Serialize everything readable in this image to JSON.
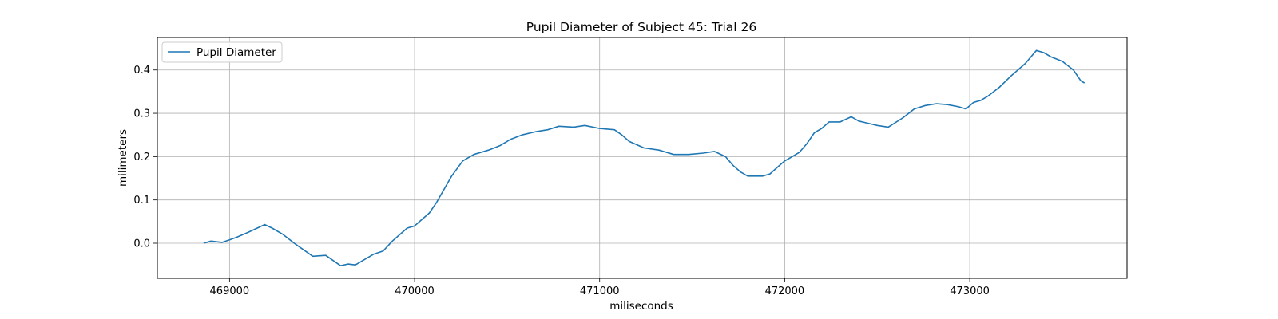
{
  "chart_data": {
    "type": "line",
    "title": "Pupil Diameter of Subject 45: Trial 26",
    "xlabel": "miliseconds",
    "ylabel": "milimeters",
    "xlim": [
      468610,
      473850
    ],
    "ylim": [
      -0.081,
      0.475
    ],
    "xticks": [
      469000,
      470000,
      471000,
      472000,
      473000
    ],
    "xtick_labels": [
      "469000",
      "470000",
      "471000",
      "472000",
      "473000"
    ],
    "yticks": [
      0.0,
      0.1,
      0.2,
      0.3,
      0.4
    ],
    "ytick_labels": [
      "0.0",
      "0.1",
      "0.2",
      "0.3",
      "0.4"
    ],
    "grid": true,
    "legend_position": "top-left",
    "series": [
      {
        "name": "Pupil Diameter",
        "color": "#1f77b4",
        "x": [
          468860,
          468900,
          468960,
          469000,
          469040,
          469100,
          469150,
          469190,
          469230,
          469290,
          469350,
          469400,
          469450,
          469520,
          469560,
          469600,
          469640,
          469680,
          469720,
          469780,
          469830,
          469880,
          469920,
          469960,
          470000,
          470040,
          470080,
          470120,
          470160,
          470200,
          470260,
          470320,
          470400,
          470460,
          470520,
          470580,
          470660,
          470720,
          470780,
          470860,
          470920,
          471000,
          471080,
          471120,
          471160,
          471240,
          471320,
          471400,
          471480,
          471560,
          471620,
          471680,
          471720,
          471760,
          471800,
          471880,
          471920,
          471960,
          472000,
          472040,
          472080,
          472120,
          472160,
          472200,
          472240,
          472300,
          472360,
          472400,
          472440,
          472500,
          472560,
          472640,
          472700,
          472760,
          472820,
          472880,
          472940,
          472980,
          473020,
          473060,
          473100,
          473160,
          473220,
          473300,
          473360,
          473400,
          473440,
          473500,
          473560,
          473600,
          473620
        ],
        "y": [
          0.0,
          0.005,
          0.002,
          0.008,
          0.014,
          0.025,
          0.035,
          0.043,
          0.035,
          0.02,
          0.0,
          -0.015,
          -0.03,
          -0.028,
          -0.04,
          -0.052,
          -0.048,
          -0.05,
          -0.04,
          -0.025,
          -0.018,
          0.005,
          0.02,
          0.035,
          0.04,
          0.055,
          0.07,
          0.095,
          0.125,
          0.155,
          0.19,
          0.205,
          0.215,
          0.225,
          0.24,
          0.25,
          0.258,
          0.262,
          0.27,
          0.268,
          0.272,
          0.265,
          0.262,
          0.25,
          0.235,
          0.22,
          0.215,
          0.205,
          0.205,
          0.208,
          0.212,
          0.2,
          0.18,
          0.165,
          0.155,
          0.155,
          0.16,
          0.175,
          0.19,
          0.2,
          0.21,
          0.23,
          0.255,
          0.265,
          0.28,
          0.28,
          0.292,
          0.282,
          0.278,
          0.272,
          0.268,
          0.29,
          0.31,
          0.318,
          0.322,
          0.32,
          0.315,
          0.31,
          0.325,
          0.33,
          0.34,
          0.36,
          0.385,
          0.415,
          0.445,
          0.44,
          0.43,
          0.42,
          0.4,
          0.375,
          0.37
        ]
      }
    ]
  }
}
